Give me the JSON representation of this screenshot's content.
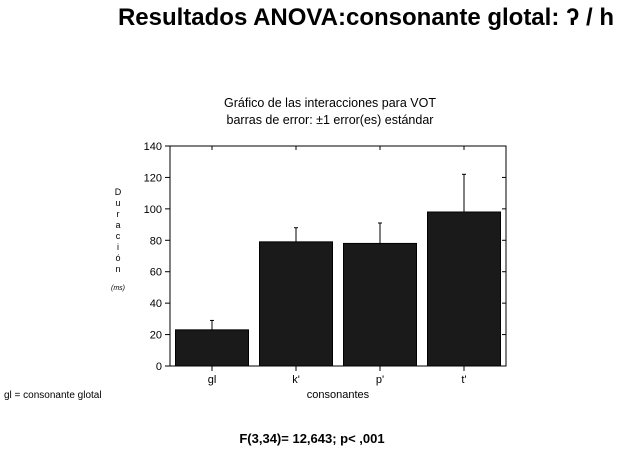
{
  "slide": {
    "title": "Resultados ANOVA:consonante glotal: ʔ / h",
    "footnote": "gl = consonante glotal",
    "stat_result": "F(3,34)= 12,643; p< ,001"
  },
  "chart_data": {
    "type": "bar",
    "title": "Gráfico de las interacciones para VOT",
    "subtitle": "barras de error: ±1 error(es) estándar",
    "categories": [
      "gl",
      "k'",
      "p'",
      "t'"
    ],
    "values": [
      23,
      79,
      78,
      98
    ],
    "error_bars": [
      6,
      9,
      13,
      24
    ],
    "xlabel": "consonantes",
    "ylabel_letters": [
      "D",
      "u",
      "r",
      "a",
      "c",
      "i",
      "ó",
      "n"
    ],
    "ylabel_unit": "(ms)",
    "ylim": [
      0,
      140
    ],
    "yticks": [
      0,
      20,
      40,
      60,
      80,
      100,
      120,
      140
    ],
    "bar_color": "#1a1a1a",
    "grid": false,
    "legend": "none"
  }
}
